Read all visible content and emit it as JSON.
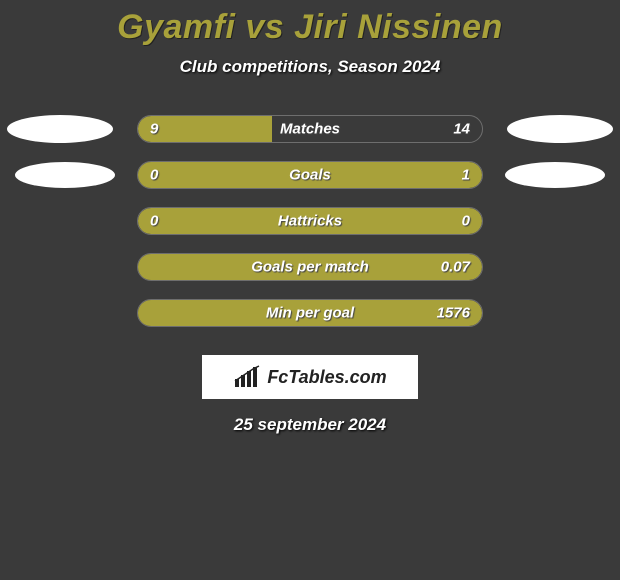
{
  "title": "Gyamfi vs Jiri Nissinen",
  "subtitle": "Club competitions, Season 2024",
  "colors": {
    "background": "#3a3a3a",
    "accent": "#a8a13a",
    "text": "#ffffff",
    "ellipse": "#ffffff",
    "border": "#6e6e6e"
  },
  "rows": [
    {
      "label": "Matches",
      "left": "9",
      "right": "14",
      "left_pct": 39,
      "right_pct": 0,
      "full": false,
      "show_ellipses": true
    },
    {
      "label": "Goals",
      "left": "0",
      "right": "1",
      "left_pct": 0,
      "right_pct": 100,
      "full": false,
      "show_ellipses": true
    },
    {
      "label": "Hattricks",
      "left": "0",
      "right": "0",
      "left_pct": 0,
      "right_pct": 0,
      "full": true,
      "show_ellipses": false
    },
    {
      "label": "Goals per match",
      "left": "",
      "right": "0.07",
      "left_pct": 0,
      "right_pct": 100,
      "full": false,
      "show_ellipses": false
    },
    {
      "label": "Min per goal",
      "left": "",
      "right": "1576",
      "left_pct": 0,
      "right_pct": 100,
      "full": false,
      "show_ellipses": false
    }
  ],
  "logo": "FcTables.com",
  "date": "25 september 2024"
}
